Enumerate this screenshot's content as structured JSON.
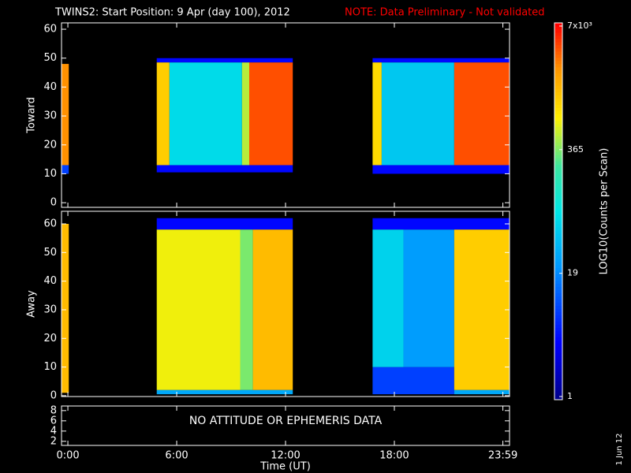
{
  "title": "TWINS2: Start Position:  9 Apr (day 100), 2012",
  "note": "NOTE: Data Preliminary - Not validated",
  "side_label": "1 Jun 12",
  "colorbar": {
    "label": "LOG10(Counts per Scan)",
    "lim": [
      1,
      7000
    ],
    "log": true,
    "ticks": [
      {
        "value": 7000,
        "label": "7x10³"
      },
      365,
      19,
      1
    ]
  },
  "chart_data": [
    {
      "type": "heatmap",
      "ylabel": "Toward",
      "xlim": [
        -0.35,
        24.35
      ],
      "ylim": [
        -1.6,
        62.2
      ],
      "yticks": [
        0,
        10,
        20,
        30,
        40,
        50,
        60
      ],
      "cells": [
        {
          "x": [
            -0.35,
            0.05
          ],
          "y": [
            10,
            13
          ],
          "value": 8
        },
        {
          "x": [
            -0.35,
            0.05
          ],
          "y": [
            13,
            48
          ],
          "value": 2500
        },
        {
          "x": [
            4.9,
            12.4
          ],
          "y": [
            10.5,
            13
          ],
          "value": 4
        },
        {
          "x": [
            4.9,
            12.4
          ],
          "y": [
            48.5,
            50
          ],
          "value": 4
        },
        {
          "x": [
            4.9,
            5.6
          ],
          "y": [
            13,
            48.5
          ],
          "value": 1200
        },
        {
          "x": [
            5.6,
            9.6
          ],
          "y": [
            13,
            48.5
          ],
          "value": 70
        },
        {
          "x": [
            9.6,
            10.0
          ],
          "y": [
            13,
            48.5
          ],
          "value": 500
        },
        {
          "x": [
            10.0,
            12.4
          ],
          "y": [
            13,
            48.5
          ],
          "value": 4000
        },
        {
          "x": [
            16.8,
            24.35
          ],
          "y": [
            10,
            13
          ],
          "value": 4
        },
        {
          "x": [
            16.8,
            24.35
          ],
          "y": [
            48.5,
            50
          ],
          "value": 4
        },
        {
          "x": [
            16.8,
            17.3
          ],
          "y": [
            13,
            48.5
          ],
          "value": 1000
        },
        {
          "x": [
            17.3,
            21.3
          ],
          "y": [
            13,
            48.5
          ],
          "value": 50
        },
        {
          "x": [
            21.3,
            24.35
          ],
          "y": [
            13,
            48.5
          ],
          "value": 4000
        }
      ]
    },
    {
      "type": "heatmap",
      "ylabel": "Away",
      "xlim": [
        -0.35,
        24.35
      ],
      "ylim": [
        -0.3,
        64.4
      ],
      "yticks": [
        0,
        10,
        20,
        30,
        40,
        50,
        60
      ],
      "cells": [
        {
          "x": [
            -0.35,
            0.05
          ],
          "y": [
            1,
            60
          ],
          "value": 1500
        },
        {
          "x": [
            4.9,
            12.4
          ],
          "y": [
            58,
            62
          ],
          "value": 4
        },
        {
          "x": [
            4.9,
            12.4
          ],
          "y": [
            0.5,
            2
          ],
          "value": 30
        },
        {
          "x": [
            4.9,
            9.5
          ],
          "y": [
            2,
            58
          ],
          "value": 700
        },
        {
          "x": [
            9.5,
            10.2
          ],
          "y": [
            2,
            58
          ],
          "value": 350
        },
        {
          "x": [
            10.2,
            12.4
          ],
          "y": [
            2,
            58
          ],
          "value": 1500
        },
        {
          "x": [
            16.8,
            24.35
          ],
          "y": [
            58,
            62
          ],
          "value": 4
        },
        {
          "x": [
            16.8,
            21.3
          ],
          "y": [
            0.5,
            10
          ],
          "value": 8
        },
        {
          "x": [
            16.8,
            18.5
          ],
          "y": [
            10,
            58
          ],
          "value": 60
        },
        {
          "x": [
            18.5,
            21.3
          ],
          "y": [
            10,
            58
          ],
          "value": 25
        },
        {
          "x": [
            21.3,
            24.35
          ],
          "y": [
            0.5,
            2
          ],
          "value": 30
        },
        {
          "x": [
            21.3,
            24.35
          ],
          "y": [
            2,
            58
          ],
          "value": 1200
        }
      ]
    },
    {
      "type": "text",
      "xlabel": "Time (UT)",
      "annotation": "NO ATTITUDE OR EPHEMERIS DATA",
      "xlim": [
        -0.35,
        24.35
      ],
      "ylim": [
        1.2,
        8.9
      ],
      "yticks": [
        2,
        4,
        6,
        8
      ],
      "xticks": [
        {
          "value": 0,
          "label": "0:00"
        },
        {
          "value": 6,
          "label": "6:00"
        },
        {
          "value": 12,
          "label": "12:00"
        },
        {
          "value": 18,
          "label": "18:00"
        },
        {
          "value": 23.983,
          "label": "23:59"
        }
      ]
    }
  ]
}
